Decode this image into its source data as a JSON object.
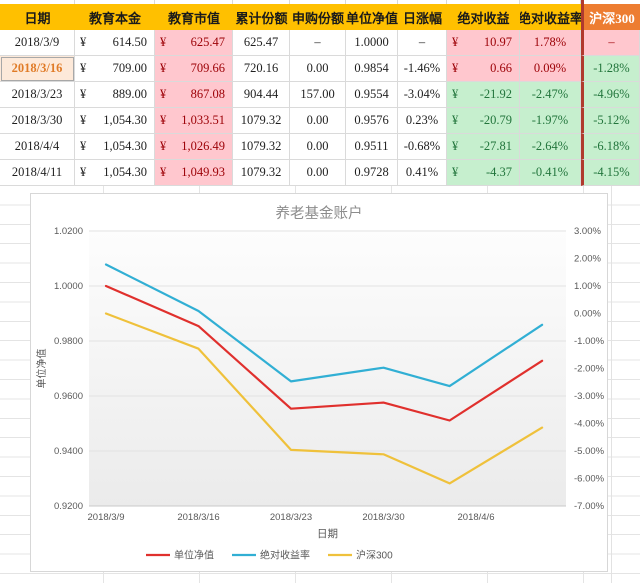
{
  "palette": {
    "header_bg": "#FFC000",
    "hs300_header_bg": "#ED7D31",
    "bad_bg": "#FFC7CE",
    "bad_text": "#9C0006",
    "good_bg": "#C6EFCE",
    "good_text": "#22753C",
    "selected_bg": "#FDE9D9",
    "selected_text": "#E07B27",
    "divider_red": "#B03A2E"
  },
  "table": {
    "headers": [
      "日期",
      "教育本金",
      "教育市值",
      "累计份额",
      "申购份额",
      "单位净值",
      "日涨幅",
      "绝对收益",
      "绝对收益率",
      "沪深300"
    ],
    "rows": [
      {
        "date": "2018/3/9",
        "selected": false,
        "cells": [
          {
            "cur": "¥",
            "val": "614.50"
          },
          {
            "cur": "¥",
            "val": "625.47",
            "tone": "bad"
          },
          {
            "val": "625.47"
          },
          {
            "val": "–"
          },
          {
            "val": "1.0000"
          },
          {
            "val": "–"
          },
          {
            "cur": "¥",
            "val": "10.97",
            "tone": "bad"
          },
          {
            "val": "1.78%",
            "tone": "bad"
          },
          {
            "val": "–",
            "tone": "bad"
          }
        ]
      },
      {
        "date": "2018/3/16",
        "selected": true,
        "cells": [
          {
            "cur": "¥",
            "val": "709.00"
          },
          {
            "cur": "¥",
            "val": "709.66",
            "tone": "bad"
          },
          {
            "val": "720.16"
          },
          {
            "val": "0.00"
          },
          {
            "val": "0.9854"
          },
          {
            "val": "-1.46%"
          },
          {
            "cur": "¥",
            "val": "0.66",
            "tone": "bad"
          },
          {
            "val": "0.09%",
            "tone": "bad"
          },
          {
            "val": "-1.28%",
            "tone": "good"
          }
        ]
      },
      {
        "date": "2018/3/23",
        "selected": false,
        "cells": [
          {
            "cur": "¥",
            "val": "889.00"
          },
          {
            "cur": "¥",
            "val": "867.08",
            "tone": "bad"
          },
          {
            "val": "904.44"
          },
          {
            "val": "157.00"
          },
          {
            "val": "0.9554"
          },
          {
            "val": "-3.04%"
          },
          {
            "cur": "¥",
            "val": "-21.92",
            "tone": "good"
          },
          {
            "val": "-2.47%",
            "tone": "good"
          },
          {
            "val": "-4.96%",
            "tone": "good"
          }
        ]
      },
      {
        "date": "2018/3/30",
        "selected": false,
        "cells": [
          {
            "cur": "¥",
            "val": "1,054.30"
          },
          {
            "cur": "¥",
            "val": "1,033.51",
            "tone": "bad"
          },
          {
            "val": "1079.32"
          },
          {
            "val": "0.00"
          },
          {
            "val": "0.9576"
          },
          {
            "val": "0.23%"
          },
          {
            "cur": "¥",
            "val": "-20.79",
            "tone": "good"
          },
          {
            "val": "-1.97%",
            "tone": "good"
          },
          {
            "val": "-5.12%",
            "tone": "good"
          }
        ]
      },
      {
        "date": "2018/4/4",
        "selected": false,
        "cells": [
          {
            "cur": "¥",
            "val": "1,054.30"
          },
          {
            "cur": "¥",
            "val": "1,026.49",
            "tone": "bad"
          },
          {
            "val": "1079.32"
          },
          {
            "val": "0.00"
          },
          {
            "val": "0.9511"
          },
          {
            "val": "-0.68%"
          },
          {
            "cur": "¥",
            "val": "-27.81",
            "tone": "good"
          },
          {
            "val": "-2.64%",
            "tone": "good"
          },
          {
            "val": "-6.18%",
            "tone": "good"
          }
        ]
      },
      {
        "date": "2018/4/11",
        "selected": false,
        "cells": [
          {
            "cur": "¥",
            "val": "1,054.30"
          },
          {
            "cur": "¥",
            "val": "1,049.93",
            "tone": "bad"
          },
          {
            "val": "1079.32"
          },
          {
            "val": "0.00"
          },
          {
            "val": "0.9728"
          },
          {
            "val": "0.41%"
          },
          {
            "cur": "¥",
            "val": "-4.37",
            "tone": "good"
          },
          {
            "val": "-0.41%",
            "tone": "good"
          },
          {
            "val": "-4.15%",
            "tone": "good"
          }
        ]
      }
    ]
  },
  "chart_data": {
    "type": "line",
    "title": "养老基金账户",
    "xlabel": "日期",
    "ylabel_left": "单位净值",
    "x_dates": [
      "2018/3/9",
      "2018/3/16",
      "2018/3/23",
      "2018/3/30",
      "2018/4/4",
      "2018/4/11"
    ],
    "x_offsets_days": [
      0,
      7,
      14,
      21,
      26,
      33
    ],
    "x_tick_labels": [
      "2018/3/9",
      "2018/3/16",
      "2018/3/23",
      "2018/3/30",
      "2018/4/6"
    ],
    "x_tick_days": [
      0,
      7,
      14,
      21,
      28
    ],
    "left_axis": {
      "min": 0.92,
      "max": 1.02,
      "ticks": [
        "1.0200",
        "1.0000",
        "0.9800",
        "0.9600",
        "0.9400",
        "0.9200"
      ]
    },
    "right_axis": {
      "min": -7,
      "max": 3,
      "ticks": [
        "3.00%",
        "2.00%",
        "1.00%",
        "0.00%",
        "-1.00%",
        "-2.00%",
        "-3.00%",
        "-4.00%",
        "-5.00%",
        "-6.00%",
        "-7.00%"
      ]
    },
    "grid": true,
    "legend_position": "bottom",
    "series": [
      {
        "name": "单位净值",
        "axis": "left",
        "color": "#E0302D",
        "values": [
          1.0,
          0.9854,
          0.9554,
          0.9576,
          0.9511,
          0.9728
        ]
      },
      {
        "name": "绝对收益率",
        "axis": "right",
        "color": "#31AFD4",
        "values": [
          1.78,
          0.09,
          -2.47,
          -1.97,
          -2.64,
          -0.41
        ]
      },
      {
        "name": "沪深300",
        "axis": "right",
        "color": "#EFC13B",
        "values": [
          0.0,
          -1.28,
          -4.96,
          -5.12,
          -6.18,
          -4.15
        ]
      }
    ]
  }
}
